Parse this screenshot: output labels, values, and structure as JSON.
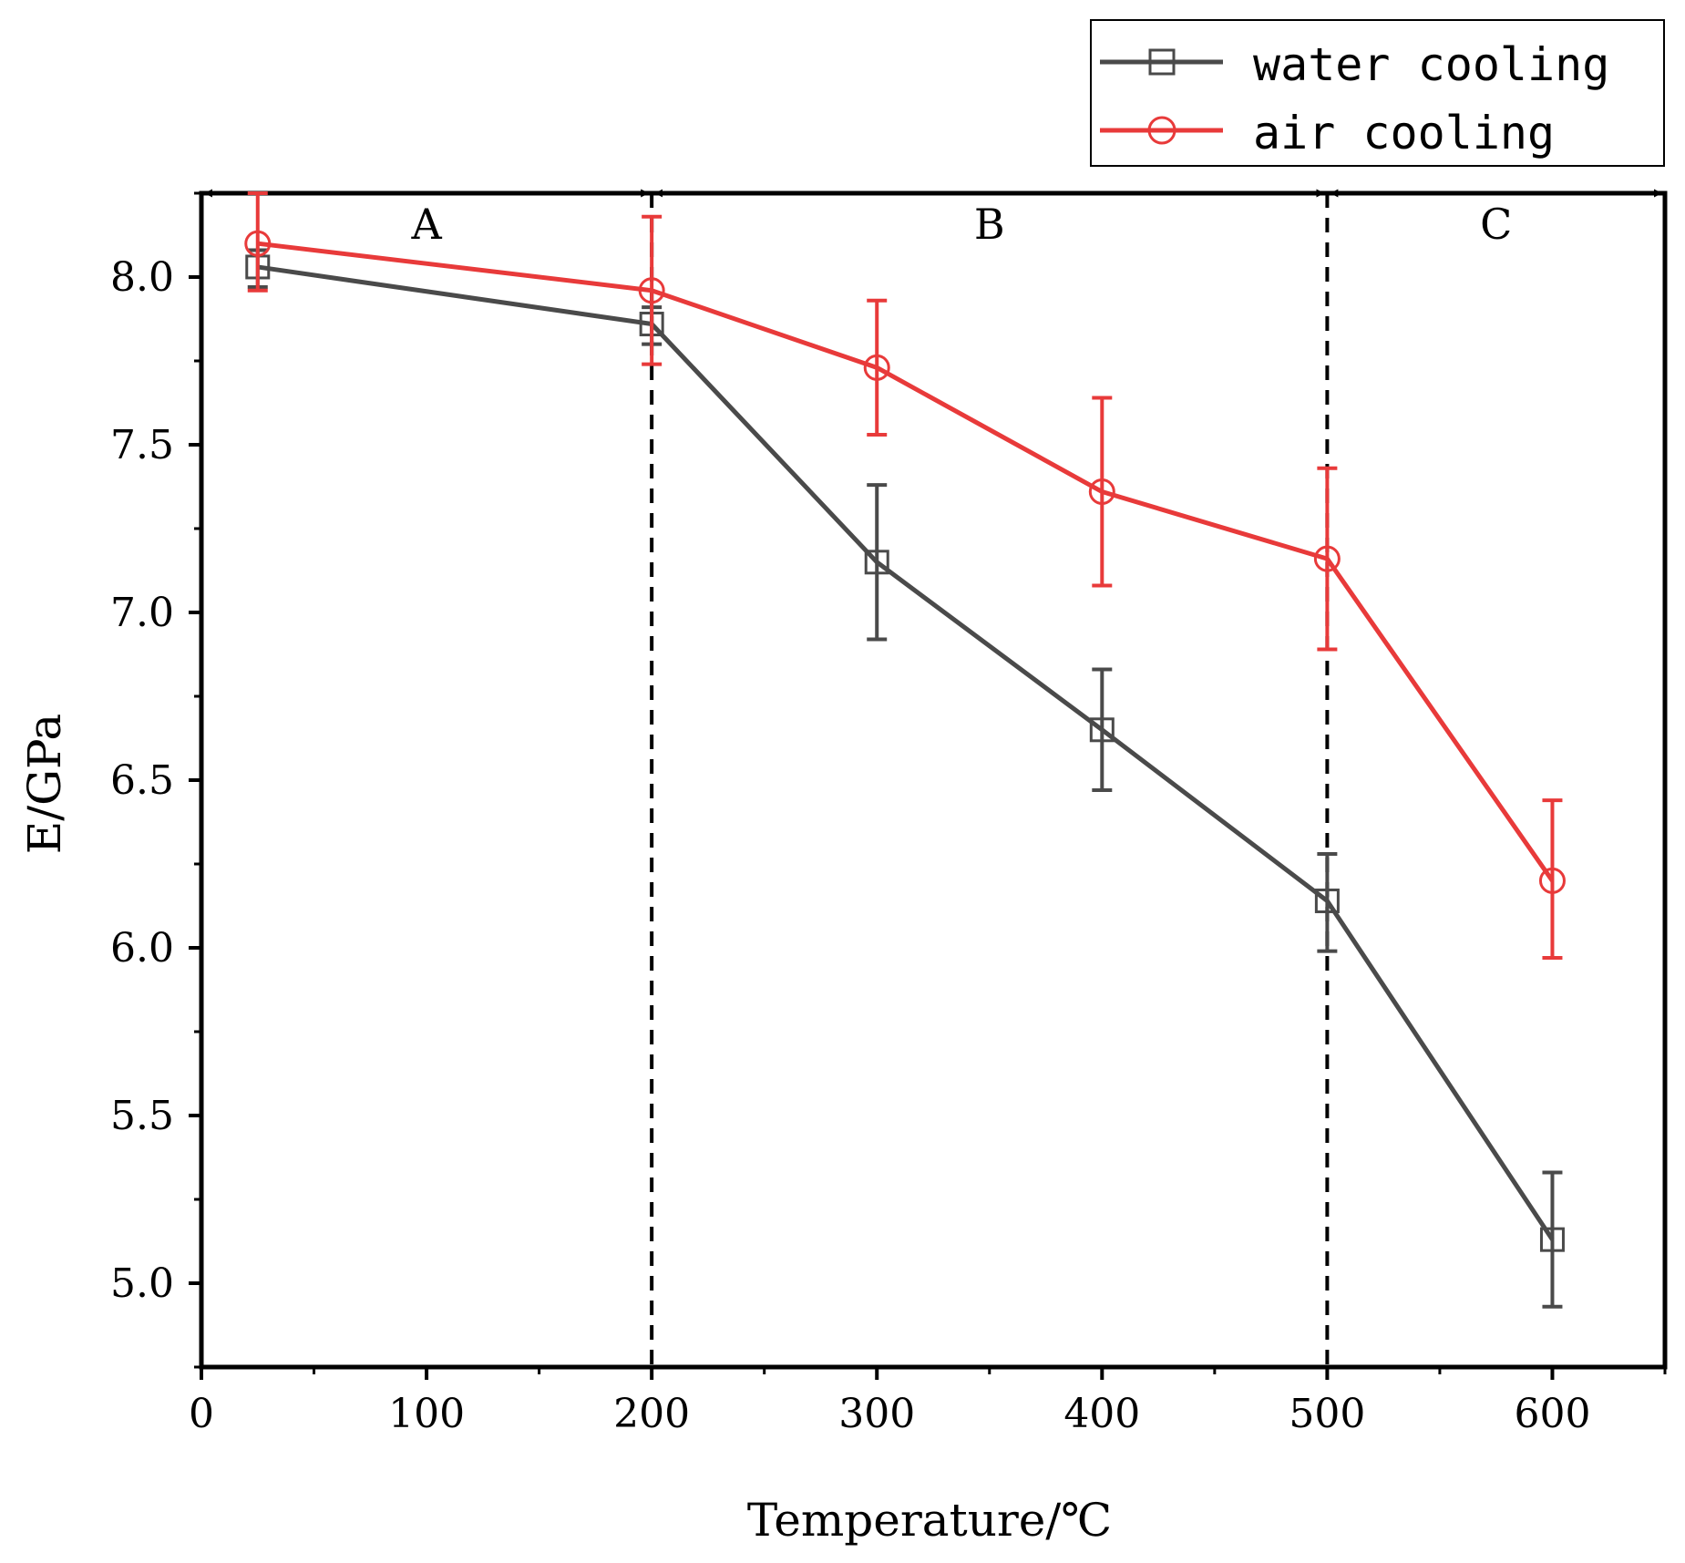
{
  "chart_data": {
    "type": "line",
    "xlabel": "Temperature/℃",
    "ylabel": "E/GPa",
    "xlim": [
      0,
      650
    ],
    "ylim": [
      4.75,
      8.25
    ],
    "x_ticks": [
      0,
      100,
      200,
      300,
      400,
      500,
      600
    ],
    "x_tick_labels": [
      "0",
      "100",
      "200",
      "300",
      "400",
      "500",
      "600"
    ],
    "y_ticks": [
      5.0,
      5.5,
      6.0,
      6.5,
      7.0,
      7.5,
      8.0
    ],
    "y_tick_labels": [
      "5.0",
      "5.5",
      "6.0",
      "6.5",
      "7.0",
      "7.5",
      "8.0"
    ],
    "grid": false,
    "legend_position": "top-right",
    "series": [
      {
        "name": "water cooling",
        "marker": "square",
        "color": "#4a4a4a",
        "x": [
          25,
          200,
          300,
          400,
          500,
          600
        ],
        "y": [
          8.03,
          7.86,
          7.15,
          6.65,
          6.14,
          5.13
        ],
        "error_low": [
          7.97,
          7.8,
          6.92,
          6.47,
          5.99,
          4.93
        ],
        "error_high": [
          8.08,
          7.91,
          7.38,
          6.83,
          6.28,
          5.33
        ]
      },
      {
        "name": "air cooling",
        "marker": "circle",
        "color": "#e83a3a",
        "x": [
          25,
          200,
          300,
          400,
          500,
          600
        ],
        "y": [
          8.1,
          7.96,
          7.73,
          7.36,
          7.16,
          6.2
        ],
        "error_low": [
          7.96,
          7.74,
          7.53,
          7.08,
          6.89,
          5.97
        ],
        "error_high": [
          8.25,
          8.18,
          7.93,
          7.64,
          7.43,
          6.44
        ]
      }
    ],
    "region_boundaries": [
      200,
      500
    ],
    "regions": [
      {
        "label": "A",
        "from": 0,
        "to": 200
      },
      {
        "label": "B",
        "from": 200,
        "to": 500
      },
      {
        "label": "C",
        "from": 500,
        "to": 650
      }
    ]
  }
}
